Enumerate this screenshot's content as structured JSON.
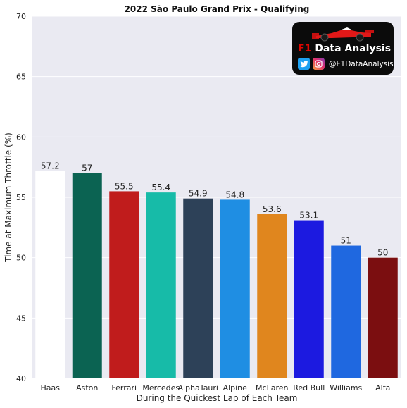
{
  "chart_data": {
    "type": "bar",
    "title": "2022 São Paulo Grand Prix - Qualifying",
    "xlabel": "During the Quickest Lap of Each Team",
    "ylabel": "Time at Maximum Throttle (%)",
    "ylim": [
      40,
      70
    ],
    "yticks": [
      40,
      45,
      50,
      55,
      60,
      65,
      70
    ],
    "categories": [
      "Haas",
      "Aston",
      "Ferrari",
      "Mercedes",
      "AlphaTauri",
      "Alpine",
      "McLaren",
      "Red Bull",
      "Williams",
      "Alfa"
    ],
    "values": [
      57.2,
      57,
      55.5,
      55.4,
      54.9,
      54.8,
      53.6,
      53.1,
      51,
      50
    ],
    "value_labels": [
      "57.2",
      "57",
      "55.5",
      "55.4",
      "54.9",
      "54.8",
      "53.6",
      "53.1",
      "51",
      "50"
    ],
    "colors": [
      "#ffffff",
      "#0b6352",
      "#c01c1c",
      "#17bba8",
      "#2d4158",
      "#1f8ee3",
      "#e0861e",
      "#1c1ae0",
      "#1f68e0",
      "#7b0e10"
    ],
    "grid": true,
    "plot_background": "#eaeaf2"
  },
  "logo": {
    "brand_prefix": "F1",
    "brand_name": "Data Analysis",
    "handle": "@F1DataAnalysis",
    "icons": [
      "f1-car-icon",
      "twitter-icon",
      "instagram-icon"
    ]
  }
}
